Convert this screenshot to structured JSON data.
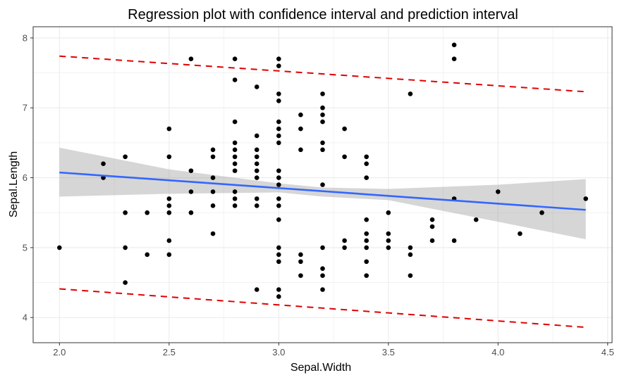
{
  "chart_data": {
    "type": "scatter",
    "title": "Regression plot with confidence interval and prediction interval",
    "xlabel": "Sepal.Width",
    "ylabel": "Sepal.Length",
    "xlim": [
      1.88,
      4.52
    ],
    "ylim": [
      3.64,
      8.16
    ],
    "x_ticks": [
      2.0,
      2.5,
      3.0,
      3.5,
      4.0,
      4.5
    ],
    "x_tick_labels": [
      "2.0",
      "2.5",
      "3.0",
      "3.5",
      "4.0",
      "4.5"
    ],
    "y_ticks": [
      4,
      5,
      6,
      7,
      8
    ],
    "y_tick_labels": [
      "4",
      "5",
      "6",
      "7",
      "8"
    ],
    "grid": true,
    "colors": {
      "points": "#000000",
      "regression_line": "#3366FF",
      "confidence_band": "#999999",
      "prediction_interval": "#E00000",
      "grid": "#EBEBEB",
      "panel_border": "#333333"
    },
    "regression": {
      "x": [
        2.0,
        4.4
      ],
      "y": [
        6.075,
        5.54
      ]
    },
    "confidence_band": {
      "x": [
        2.0,
        2.5,
        3.0,
        3.2,
        3.5,
        4.0,
        4.4
      ],
      "upper": [
        6.43,
        6.12,
        5.92,
        5.86,
        5.84,
        5.9,
        5.98
      ],
      "lower": [
        5.73,
        5.77,
        5.79,
        5.73,
        5.68,
        5.37,
        5.12
      ]
    },
    "prediction_upper": {
      "x": [
        2.0,
        4.4
      ],
      "y": [
        7.74,
        7.23
      ]
    },
    "prediction_lower": {
      "x": [
        2.0,
        4.4
      ],
      "y": [
        4.41,
        3.86
      ]
    },
    "points": [
      [
        2.0,
        5.0
      ],
      [
        2.2,
        6.2
      ],
      [
        2.2,
        6.0
      ],
      [
        2.3,
        6.3
      ],
      [
        2.3,
        5.5
      ],
      [
        2.3,
        5.0
      ],
      [
        2.3,
        4.5
      ],
      [
        2.4,
        5.5
      ],
      [
        2.4,
        4.9
      ],
      [
        2.5,
        6.7
      ],
      [
        2.5,
        6.3
      ],
      [
        2.5,
        5.7
      ],
      [
        2.5,
        5.6
      ],
      [
        2.5,
        5.5
      ],
      [
        2.5,
        5.1
      ],
      [
        2.5,
        4.9
      ],
      [
        2.6,
        7.7
      ],
      [
        2.6,
        6.1
      ],
      [
        2.6,
        5.8
      ],
      [
        2.6,
        5.5
      ],
      [
        2.7,
        6.4
      ],
      [
        2.7,
        6.3
      ],
      [
        2.7,
        6.0
      ],
      [
        2.7,
        5.8
      ],
      [
        2.7,
        5.6
      ],
      [
        2.7,
        5.2
      ],
      [
        2.8,
        7.7
      ],
      [
        2.8,
        7.4
      ],
      [
        2.8,
        6.8
      ],
      [
        2.8,
        6.5
      ],
      [
        2.8,
        6.4
      ],
      [
        2.8,
        6.3
      ],
      [
        2.8,
        6.2
      ],
      [
        2.8,
        6.1
      ],
      [
        2.8,
        5.8
      ],
      [
        2.8,
        5.7
      ],
      [
        2.8,
        5.6
      ],
      [
        2.9,
        7.3
      ],
      [
        2.9,
        6.6
      ],
      [
        2.9,
        6.4
      ],
      [
        2.9,
        6.3
      ],
      [
        2.9,
        6.2
      ],
      [
        2.9,
        6.1
      ],
      [
        2.9,
        6.0
      ],
      [
        2.9,
        5.7
      ],
      [
        2.9,
        5.6
      ],
      [
        2.9,
        4.4
      ],
      [
        3.0,
        7.7
      ],
      [
        3.0,
        7.6
      ],
      [
        3.0,
        7.2
      ],
      [
        3.0,
        7.1
      ],
      [
        3.0,
        6.8
      ],
      [
        3.0,
        6.7
      ],
      [
        3.0,
        6.6
      ],
      [
        3.0,
        6.5
      ],
      [
        3.0,
        6.1
      ],
      [
        3.0,
        6.0
      ],
      [
        3.0,
        5.9
      ],
      [
        3.0,
        5.7
      ],
      [
        3.0,
        5.6
      ],
      [
        3.0,
        5.4
      ],
      [
        3.0,
        5.0
      ],
      [
        3.0,
        4.9
      ],
      [
        3.0,
        4.8
      ],
      [
        3.0,
        4.4
      ],
      [
        3.0,
        4.3
      ],
      [
        3.1,
        6.9
      ],
      [
        3.1,
        6.7
      ],
      [
        3.1,
        6.4
      ],
      [
        3.1,
        4.9
      ],
      [
        3.1,
        4.8
      ],
      [
        3.1,
        4.6
      ],
      [
        3.2,
        7.2
      ],
      [
        3.2,
        7.0
      ],
      [
        3.2,
        6.9
      ],
      [
        3.2,
        6.8
      ],
      [
        3.2,
        6.5
      ],
      [
        3.2,
        6.4
      ],
      [
        3.2,
        5.9
      ],
      [
        3.2,
        5.0
      ],
      [
        3.2,
        4.7
      ],
      [
        3.2,
        4.6
      ],
      [
        3.2,
        4.4
      ],
      [
        3.3,
        6.7
      ],
      [
        3.3,
        6.3
      ],
      [
        3.3,
        5.1
      ],
      [
        3.3,
        5.0
      ],
      [
        3.4,
        6.3
      ],
      [
        3.4,
        6.2
      ],
      [
        3.4,
        6.0
      ],
      [
        3.4,
        5.4
      ],
      [
        3.4,
        5.2
      ],
      [
        3.4,
        5.1
      ],
      [
        3.4,
        5.0
      ],
      [
        3.4,
        4.8
      ],
      [
        3.4,
        4.6
      ],
      [
        3.5,
        5.5
      ],
      [
        3.5,
        5.2
      ],
      [
        3.5,
        5.1
      ],
      [
        3.5,
        5.0
      ],
      [
        3.6,
        7.2
      ],
      [
        3.6,
        5.0
      ],
      [
        3.6,
        4.9
      ],
      [
        3.6,
        4.6
      ],
      [
        3.7,
        5.4
      ],
      [
        3.7,
        5.3
      ],
      [
        3.7,
        5.1
      ],
      [
        3.8,
        7.9
      ],
      [
        3.8,
        7.7
      ],
      [
        3.8,
        5.7
      ],
      [
        3.8,
        5.1
      ],
      [
        3.9,
        5.4
      ],
      [
        4.0,
        5.8
      ],
      [
        4.1,
        5.2
      ],
      [
        4.2,
        5.5
      ],
      [
        4.4,
        5.7
      ]
    ]
  }
}
